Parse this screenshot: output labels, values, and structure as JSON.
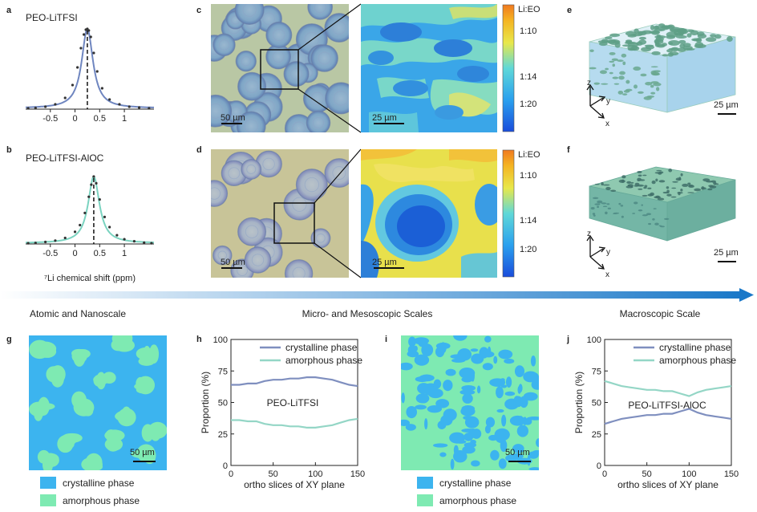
{
  "panel_letters": {
    "a": "a",
    "b": "b",
    "c": "c",
    "d": "d",
    "e": "e",
    "f": "f",
    "g": "g",
    "h": "h",
    "i": "i",
    "j": "j"
  },
  "titles": {
    "a": "PEO-LiTFSI",
    "b": "PEO-LiTFSI-AlOC"
  },
  "scale_bars": {
    "c_left": "50 µm",
    "c_right": "25 µm",
    "d_left": "50 µm",
    "d_right": "25 µm",
    "e": "25 µm",
    "f": "25 µm",
    "g": "50 µm",
    "i": "50 µm"
  },
  "colorbar": {
    "title": "Li:EO",
    "ticks": [
      "1:10",
      "1:14",
      "1:20"
    ]
  },
  "axes3d": {
    "z": "z",
    "y": "y",
    "x": "x"
  },
  "scale_arrow": {
    "labels": [
      "Atomic and Nanoscale",
      "Micro- and Mesoscopic Scales",
      "Macroscopic Scale"
    ]
  },
  "legend_blocks": {
    "crystalline": "crystalline phase",
    "amorphous": "amorphous phase"
  },
  "colors": {
    "nmr_a": "#6f86c0",
    "nmr_b": "#7ad3c0",
    "crystalline_map": "#3cb4ef",
    "amorphous_map": "#7eeab2",
    "crystalline_line": "#7f8fbf",
    "amorphous_line": "#94d6c6",
    "arrow": "#1a78c8"
  },
  "chart_data": [
    {
      "type": "line",
      "panel": "a",
      "title": "PEO-LiTFSI",
      "xlabel": "",
      "ylabel": "",
      "xlim": [
        -1.0,
        1.6
      ],
      "xticks": [
        -0.5,
        0,
        0.5,
        1
      ],
      "x_tick_labels": [
        "-0.5",
        "0",
        "0.5",
        "1"
      ],
      "peak_center": 0.25,
      "series": [
        {
          "values_x": [
            -0.95,
            -0.8,
            -0.6,
            -0.4,
            -0.2,
            -0.05,
            0.05,
            0.12,
            0.18,
            0.22,
            0.25,
            0.28,
            0.32,
            0.38,
            0.45,
            0.55,
            0.7,
            0.9,
            1.1,
            1.3,
            1.5
          ],
          "values_y": [
            0.01,
            0.015,
            0.03,
            0.06,
            0.14,
            0.3,
            0.52,
            0.76,
            0.93,
            0.99,
            1.0,
            0.98,
            0.9,
            0.7,
            0.47,
            0.26,
            0.12,
            0.06,
            0.03,
            0.02,
            0.01
          ]
        }
      ]
    },
    {
      "type": "line",
      "panel": "b",
      "title": "PEO-LiTFSI-AlOC",
      "xlabel": "⁷Li chemical shift (ppm)",
      "ylabel": "",
      "xlim": [
        -1.0,
        1.6
      ],
      "xticks": [
        -0.5,
        0,
        0.5,
        1
      ],
      "x_tick_labels": [
        "-0.5",
        "0",
        "0.5",
        "1"
      ],
      "peak_center": 0.38,
      "series": [
        {
          "values_x": [
            -0.95,
            -0.8,
            -0.6,
            -0.4,
            -0.2,
            0.0,
            0.1,
            0.2,
            0.28,
            0.33,
            0.38,
            0.43,
            0.5,
            0.6,
            0.7,
            0.85,
            1.0,
            1.2,
            1.4,
            1.55
          ],
          "values_y": [
            0.01,
            0.015,
            0.03,
            0.05,
            0.09,
            0.18,
            0.28,
            0.46,
            0.7,
            0.88,
            1.0,
            0.9,
            0.66,
            0.4,
            0.25,
            0.13,
            0.07,
            0.04,
            0.02,
            0.01
          ]
        }
      ]
    },
    {
      "type": "line",
      "panel": "h",
      "title": "PEO-LiTFSI",
      "xlabel": "ortho slices of XY plane",
      "ylabel": "Proportion (%)",
      "xlim": [
        0,
        150
      ],
      "ylim": [
        0,
        100
      ],
      "xticks": [
        0,
        50,
        100,
        150
      ],
      "yticks": [
        0,
        25,
        50,
        75,
        100
      ],
      "x": [
        0,
        10,
        20,
        30,
        40,
        50,
        60,
        70,
        80,
        90,
        100,
        110,
        120,
        130,
        140,
        150
      ],
      "series": [
        {
          "name": "crystalline phase",
          "values": [
            64,
            64,
            65,
            65,
            67,
            68,
            68,
            69,
            69,
            70,
            70,
            69,
            68,
            66,
            64,
            63
          ]
        },
        {
          "name": "amorphous phase",
          "values": [
            36,
            36,
            35,
            35,
            33,
            32,
            32,
            31,
            31,
            30,
            30,
            31,
            32,
            34,
            36,
            37
          ]
        }
      ],
      "legend": "top-right"
    },
    {
      "type": "line",
      "panel": "j",
      "title": "PEO-LiTFSI-AlOC",
      "xlabel": "ortho slices of XY plane",
      "ylabel": "Proportion (%)",
      "xlim": [
        0,
        150
      ],
      "ylim": [
        0,
        100
      ],
      "xticks": [
        0,
        50,
        100,
        150
      ],
      "yticks": [
        0,
        25,
        50,
        75,
        100
      ],
      "x": [
        0,
        10,
        20,
        30,
        40,
        50,
        60,
        70,
        80,
        90,
        100,
        110,
        120,
        130,
        140,
        150
      ],
      "series": [
        {
          "name": "crystalline phase",
          "values": [
            33,
            35,
            37,
            38,
            39,
            40,
            40,
            41,
            41,
            43,
            45,
            42,
            40,
            39,
            38,
            37
          ]
        },
        {
          "name": "amorphous phase",
          "values": [
            67,
            65,
            63,
            62,
            61,
            60,
            60,
            59,
            59,
            57,
            55,
            58,
            60,
            61,
            62,
            63
          ]
        }
      ],
      "legend": "top-right"
    }
  ]
}
